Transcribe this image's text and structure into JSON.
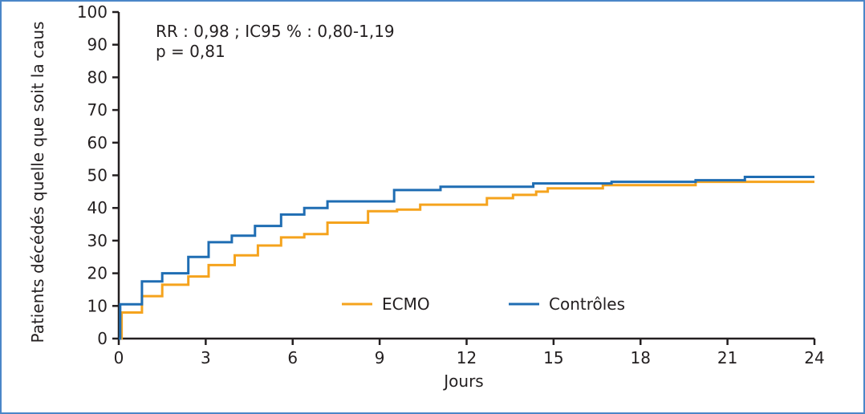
{
  "chart_data": {
    "type": "line",
    "step": true,
    "title": "",
    "xlabel": "Jours",
    "ylabel": "Patients décédés quelle que soit la caus",
    "xlim": [
      0,
      24
    ],
    "ylim": [
      0,
      100
    ],
    "xticks": [
      0,
      3,
      6,
      9,
      12,
      15,
      18,
      21,
      24
    ],
    "yticks": [
      0,
      10,
      20,
      30,
      40,
      50,
      60,
      70,
      80,
      90,
      100
    ],
    "grid": false,
    "legend_position": "bottom-center",
    "annotations": [
      "RR : 0,98 ; IC95 % : 0,80-1,19",
      "p = 0,81"
    ],
    "series": [
      {
        "name": "ECMO",
        "color": "#f5a31d",
        "points": [
          [
            0,
            0
          ],
          [
            0.1,
            8
          ],
          [
            0.8,
            13
          ],
          [
            1.5,
            16.5
          ],
          [
            2.4,
            19
          ],
          [
            3.1,
            22.5
          ],
          [
            4,
            25.5
          ],
          [
            4.8,
            28.5
          ],
          [
            5.6,
            31
          ],
          [
            6.4,
            32
          ],
          [
            7.2,
            35.5
          ],
          [
            8.6,
            39
          ],
          [
            9.6,
            39.5
          ],
          [
            10.4,
            41
          ],
          [
            12.7,
            43
          ],
          [
            13.6,
            44
          ],
          [
            14.4,
            45
          ],
          [
            14.8,
            46
          ],
          [
            16.7,
            47
          ],
          [
            19.9,
            48
          ],
          [
            24,
            48
          ]
        ]
      },
      {
        "name": "Contrôles",
        "color": "#1f6db3",
        "points": [
          [
            0,
            0
          ],
          [
            0.05,
            10.5
          ],
          [
            0.8,
            17.5
          ],
          [
            1.5,
            20
          ],
          [
            2.4,
            25
          ],
          [
            3.1,
            29.5
          ],
          [
            3.9,
            31.5
          ],
          [
            4.7,
            34.5
          ],
          [
            5.6,
            38
          ],
          [
            6.4,
            40
          ],
          [
            7.2,
            42
          ],
          [
            9.5,
            45.5
          ],
          [
            11.1,
            46.5
          ],
          [
            14.3,
            47.5
          ],
          [
            17,
            48
          ],
          [
            19.9,
            48.5
          ],
          [
            21.6,
            49.5
          ],
          [
            24,
            49.5
          ]
        ]
      }
    ]
  }
}
